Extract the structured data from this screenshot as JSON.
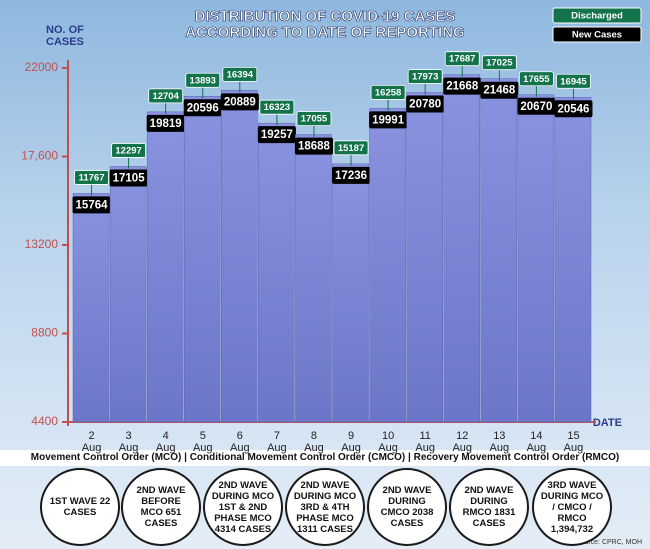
{
  "chart_data": {
    "type": "bar",
    "title": "DISTRIBUTION OF COVID-19 CASES",
    "subtitle": "ACCORDING TO DATE OF REPORTING",
    "y_label": "NO. OF CASES",
    "x_label": "DATE",
    "categories": [
      "2 Aug",
      "3 Aug",
      "4 Aug",
      "5 Aug",
      "6 Aug",
      "7 Aug",
      "8 Aug",
      "9 Aug",
      "10 Aug",
      "11 Aug",
      "12 Aug",
      "13 Aug",
      "14 Aug",
      "15 Aug"
    ],
    "series": [
      {
        "name": "New Cases",
        "color": "#000000",
        "values": [
          15764,
          17105,
          19819,
          20596,
          20889,
          19257,
          18688,
          17236,
          19991,
          20780,
          21668,
          21468,
          20670,
          20546
        ]
      },
      {
        "name": "Discharged",
        "color": "#13734a",
        "values": [
          11767,
          12297,
          12704,
          13893,
          16394,
          16323,
          17055,
          15187,
          16258,
          17973,
          17687,
          17025,
          17655,
          16945
        ]
      }
    ],
    "ylim": [
      4400,
      22000
    ],
    "yticks": [
      4400,
      8800,
      13200,
      {
        "value": 17600,
        "label": "17,600"
      },
      22000
    ]
  },
  "footer": "Movement Control Order (MCO) | Conditional Movement Control Order (CMCO) | Recovery Movement Control Order (RMCO)",
  "waves": [
    "1ST WAVE 22 CASES",
    "2ND WAVE BEFORE MCO 651 CASES",
    "2ND WAVE DURING MCO 1ST & 2ND PHASE MCO 4314 CASES",
    "2ND WAVE DURING MCO 3RD & 4TH PHASE MCO 1311 CASES",
    "2ND WAVE DURING CMCO 2038 CASES",
    "2ND WAVE DURING RMCO 1831 CASES",
    "3RD WAVE DURING MCO / CMCO / RMCO 1,394,732"
  ],
  "source": "Source: CPRC, MOH"
}
